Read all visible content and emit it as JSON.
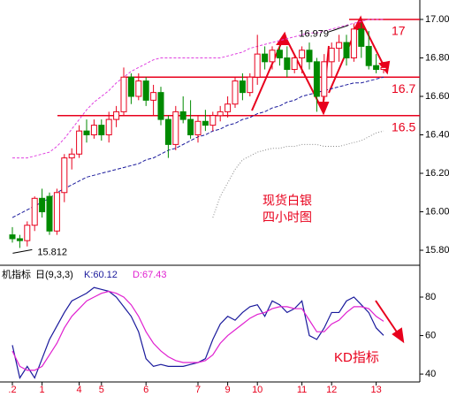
{
  "chart_data": [
    {
      "type": "candlestick",
      "open": [
        15.88,
        15.86,
        15.85,
        15.93,
        16.07,
        16.08,
        15.9,
        16.1,
        16.28,
        16.3,
        16.42,
        16.4,
        16.45,
        16.4,
        16.48,
        16.52,
        16.7,
        16.6,
        16.68,
        16.58,
        16.62,
        16.48,
        16.35,
        16.52,
        16.48,
        16.4,
        16.47,
        16.45,
        16.5,
        16.52,
        16.56,
        16.68,
        16.62,
        16.7,
        16.82,
        16.78,
        16.84,
        16.8,
        16.74,
        16.8,
        16.84,
        16.78,
        16.6,
        16.78,
        16.85,
        16.88,
        16.8,
        16.95,
        16.86,
        16.76,
        16.74
      ],
      "high": [
        15.92,
        15.88,
        15.95,
        16.08,
        16.12,
        16.1,
        16.12,
        16.3,
        16.33,
        16.45,
        16.48,
        16.48,
        16.48,
        16.52,
        16.55,
        16.75,
        16.72,
        16.72,
        16.7,
        16.66,
        16.65,
        16.5,
        16.55,
        16.6,
        16.58,
        16.5,
        16.53,
        16.52,
        16.55,
        16.6,
        16.7,
        16.72,
        16.72,
        16.92,
        16.86,
        16.86,
        16.86,
        16.86,
        16.82,
        16.86,
        16.88,
        16.8,
        16.82,
        16.88,
        16.92,
        16.92,
        16.979,
        16.98,
        16.94,
        16.82,
        16.78
      ],
      "low": [
        15.84,
        15.812,
        15.82,
        15.9,
        15.97,
        15.88,
        15.88,
        16.05,
        16.22,
        16.28,
        16.36,
        16.38,
        16.37,
        16.36,
        16.44,
        16.5,
        16.56,
        16.58,
        16.55,
        16.5,
        16.45,
        16.28,
        16.32,
        16.46,
        16.38,
        16.36,
        16.42,
        16.42,
        16.47,
        16.49,
        16.54,
        16.58,
        16.6,
        16.66,
        16.74,
        16.74,
        16.76,
        16.7,
        16.72,
        16.72,
        16.74,
        16.52,
        16.58,
        16.7,
        16.78,
        16.76,
        16.78,
        16.8,
        16.74,
        16.72,
        16.72
      ],
      "close": [
        15.86,
        15.85,
        15.93,
        16.07,
        16.0,
        15.9,
        16.1,
        16.28,
        16.3,
        16.42,
        16.4,
        16.45,
        16.4,
        16.48,
        16.52,
        16.7,
        16.6,
        16.68,
        16.58,
        16.62,
        16.48,
        16.35,
        16.52,
        16.48,
        16.4,
        16.47,
        16.45,
        16.5,
        16.52,
        16.56,
        16.68,
        16.62,
        16.7,
        16.82,
        16.78,
        16.84,
        16.8,
        16.74,
        16.8,
        16.84,
        16.78,
        16.6,
        16.78,
        16.85,
        16.88,
        16.8,
        16.95,
        16.86,
        16.76,
        16.74,
        16.75
      ],
      "up_color": "#e8001c",
      "down_color": "#008a00",
      "overlays": [
        {
          "color": "#1a1a9c",
          "values": [
            15.97,
            15.99,
            16.01,
            16.03,
            16.05,
            16.07,
            16.1,
            16.12,
            16.14,
            16.16,
            16.18,
            16.19,
            16.2,
            16.21,
            16.22,
            16.23,
            16.24,
            16.25,
            16.27,
            16.28,
            16.3,
            16.32,
            16.33,
            16.35,
            16.37,
            16.39,
            16.4,
            16.42,
            16.43,
            16.45,
            16.46,
            16.48,
            16.49,
            16.51,
            16.52,
            16.54,
            16.55,
            16.57,
            16.58,
            16.6,
            16.61,
            16.62,
            16.63,
            16.64,
            16.65,
            16.66,
            16.67,
            16.67,
            16.68,
            16.69,
            16.7
          ]
        },
        {
          "color": "#e040e0",
          "values": [
            16.28,
            16.28,
            16.28,
            16.29,
            16.3,
            16.31,
            16.34,
            16.38,
            16.43,
            16.48,
            16.53,
            16.57,
            16.6,
            16.63,
            16.67,
            16.7,
            16.73,
            16.75,
            16.77,
            16.79,
            16.8,
            16.8,
            16.8,
            16.8,
            16.8,
            16.8,
            16.8,
            16.8,
            16.8,
            16.81,
            16.82,
            16.83,
            16.85,
            16.86,
            16.87,
            16.88,
            16.89,
            16.9,
            16.91,
            16.92,
            16.93,
            16.93,
            16.94,
            16.95,
            16.96,
            16.97,
            16.98,
            16.99,
            17.0,
            17.0,
            17.0
          ]
        },
        {
          "color": "#888888",
          "values": [
            null,
            null,
            null,
            null,
            null,
            null,
            null,
            null,
            null,
            null,
            null,
            null,
            null,
            null,
            null,
            null,
            null,
            null,
            null,
            null,
            null,
            null,
            null,
            null,
            null,
            null,
            null,
            15.97,
            16.08,
            16.15,
            16.22,
            16.27,
            16.29,
            16.31,
            16.32,
            16.33,
            16.33,
            16.34,
            16.34,
            16.35,
            16.35,
            16.35,
            16.34,
            16.34,
            16.34,
            16.35,
            16.36,
            16.37,
            16.39,
            16.41,
            16.42
          ]
        }
      ],
      "hlines": [
        {
          "value": 17,
          "color": "#e8001c"
        },
        {
          "value": 16.7,
          "color": "#e8001c"
        },
        {
          "value": 16.5,
          "color": "#e8001c"
        }
      ],
      "low_label": 15.812,
      "high_label": 16.979,
      "notes": [
        "现货白银",
        "四小时图"
      ],
      "ylim": [
        15.745,
        17.101
      ],
      "yticks": [
        {
          "value": 17,
          "label": "17.00"
        },
        {
          "value": 16.8,
          "label": "16.80"
        },
        {
          "value": 16.6,
          "label": "16.60"
        },
        {
          "value": 16.4,
          "label": "16.40"
        },
        {
          "value": 16.2,
          "label": "16.20"
        },
        {
          "value": 16,
          "label": "16.00"
        },
        {
          "value": 15.8,
          "label": "15.80"
        }
      ]
    },
    {
      "type": "line",
      "title": "机指标",
      "params": "日(9,3,3)",
      "annotation": "KD指标",
      "categories": [
        ".2",
        null,
        null,
        null,
        "1",
        null,
        null,
        null,
        null,
        "4",
        null,
        null,
        "5",
        null,
        null,
        null,
        null,
        null,
        "6",
        null,
        null,
        null,
        null,
        null,
        null,
        "7",
        null,
        null,
        null,
        "9",
        null,
        null,
        null,
        "10",
        null,
        null,
        null,
        null,
        null,
        "11",
        null,
        null,
        null,
        "12",
        null,
        null,
        null,
        null,
        null,
        "13",
        null
      ],
      "series": [
        {
          "name": "K:60.12",
          "color": "#1a1a9c",
          "values": [
            55,
            38,
            44,
            38,
            48,
            58,
            65,
            72,
            78,
            80,
            82,
            85,
            84,
            83,
            80,
            75,
            70,
            62,
            48,
            44,
            45,
            44,
            44,
            44,
            45,
            46,
            48,
            58,
            66,
            70,
            68,
            72,
            75,
            76,
            70,
            78,
            76,
            72,
            74,
            78,
            60,
            58,
            64,
            72,
            72,
            78,
            80,
            76,
            72,
            64,
            60.12
          ]
        },
        {
          "name": "D:67.43",
          "color": "#e020d0",
          "values": [
            52,
            44,
            42,
            42,
            44,
            50,
            56,
            64,
            70,
            74,
            78,
            80,
            82,
            83,
            82,
            80,
            76,
            70,
            62,
            56,
            52,
            49,
            47,
            46,
            46,
            46,
            47,
            50,
            56,
            60,
            63,
            66,
            69,
            71,
            72,
            74,
            75,
            75,
            74,
            74,
            68,
            62,
            62,
            66,
            68,
            72,
            75,
            75,
            74,
            70,
            67.43
          ]
        }
      ],
      "ylim": [
        35.9,
        85.06
      ],
      "yticks": [
        80,
        60,
        40
      ]
    }
  ]
}
